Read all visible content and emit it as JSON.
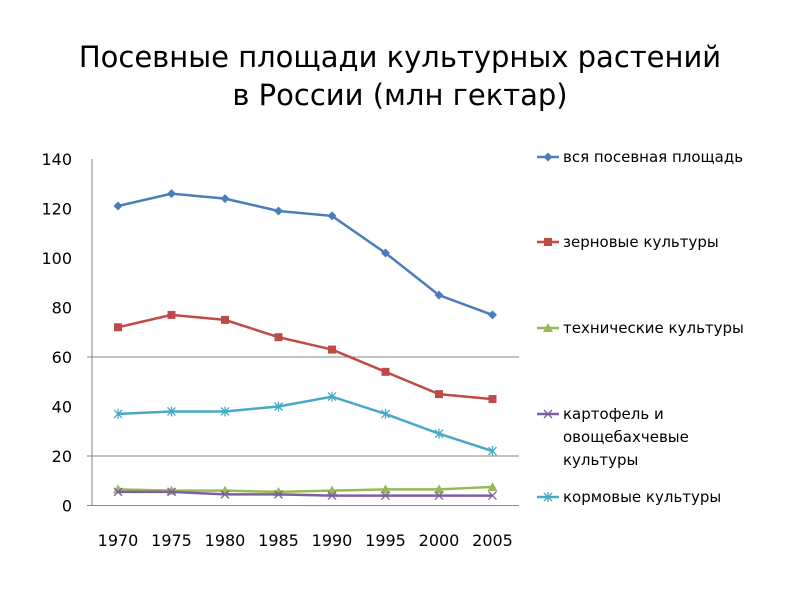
{
  "chart_data": {
    "type": "line",
    "title": [
      "Посевные площади культурных растений",
      "в России (млн гектар)"
    ],
    "xlabel": "",
    "ylabel": "",
    "categories": [
      "1970",
      "1975",
      "1980",
      "1985",
      "1990",
      "1995",
      "2000",
      "2005"
    ],
    "ylim": [
      0,
      140
    ],
    "yticks": [
      0,
      20,
      40,
      60,
      80,
      100,
      120,
      140
    ],
    "grid": "horizontal lines at 20 and 60",
    "legend_position": "right",
    "series": [
      {
        "name": [
          "вся посевная площадь"
        ],
        "color": "#4a7ebb",
        "marker": "diamond",
        "values": [
          121,
          126,
          124,
          119,
          117,
          102,
          85,
          77
        ]
      },
      {
        "name": [
          "зерновые культуры"
        ],
        "color": "#be4b48",
        "marker": "square",
        "values": [
          72,
          77,
          75,
          68,
          63,
          54,
          45,
          43
        ]
      },
      {
        "name": [
          "технические культуры"
        ],
        "color": "#98b954",
        "marker": "triangle",
        "values": [
          6.5,
          6,
          6,
          5.5,
          6,
          6.5,
          6.5,
          7.5
        ]
      },
      {
        "name": [
          "картофель и",
          "овощебахчевые",
          "культуры"
        ],
        "color": "#7d60a0",
        "marker": "x",
        "values": [
          5.5,
          5.5,
          4.5,
          4.5,
          4,
          4,
          4,
          4
        ]
      },
      {
        "name": [
          "кормовые культуры"
        ],
        "color": "#46aac5",
        "marker": "star",
        "values": [
          37,
          38,
          38,
          40,
          44,
          37,
          29,
          22
        ]
      }
    ]
  }
}
